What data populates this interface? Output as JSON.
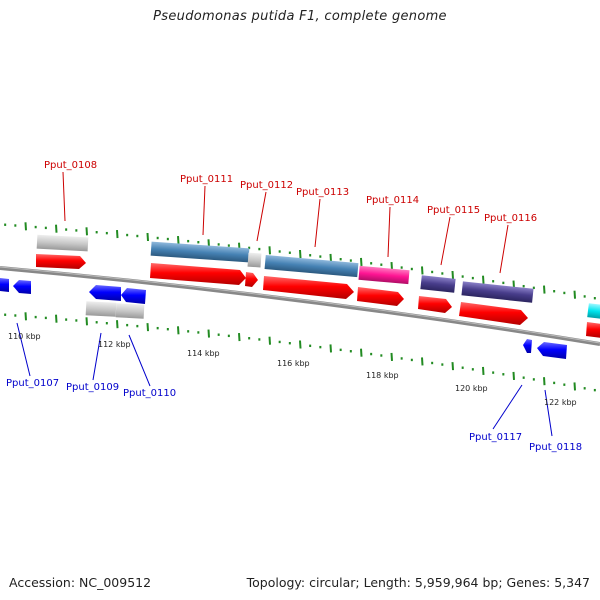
{
  "title": "Pseudomonas putida F1, complete genome",
  "footer": {
    "accession": "Accession: NC_009512",
    "summary": "Topology: circular; Length: 5,959,964 bp; Genes: 5,347"
  },
  "colors": {
    "forward_label": "#cc0000",
    "reverse_label": "#0000cc",
    "cds_forward": "#ff0000",
    "cds_reverse": "#0000ff",
    "gene_gray": "#c8c8c8",
    "steel_blue": "#4682b4",
    "magenta": "#ff1493",
    "dark_slate": "#483d8b",
    "cyan": "#00e5ee",
    "tick_green": "#228b22"
  },
  "scale_labels": [
    "110 kbp",
    "112 kbp",
    "114 kbp",
    "116 kbp",
    "118 kbp",
    "120 kbp",
    "122 kbp"
  ],
  "forward_gene_labels": [
    "Pput_0108",
    "Pput_0111",
    "Pput_0112",
    "Pput_0113",
    "Pput_0114",
    "Pput_0115",
    "Pput_0116"
  ],
  "reverse_gene_labels": [
    "Pput_0107",
    "Pput_0109",
    "Pput_0110",
    "Pput_0117",
    "Pput_0118"
  ]
}
